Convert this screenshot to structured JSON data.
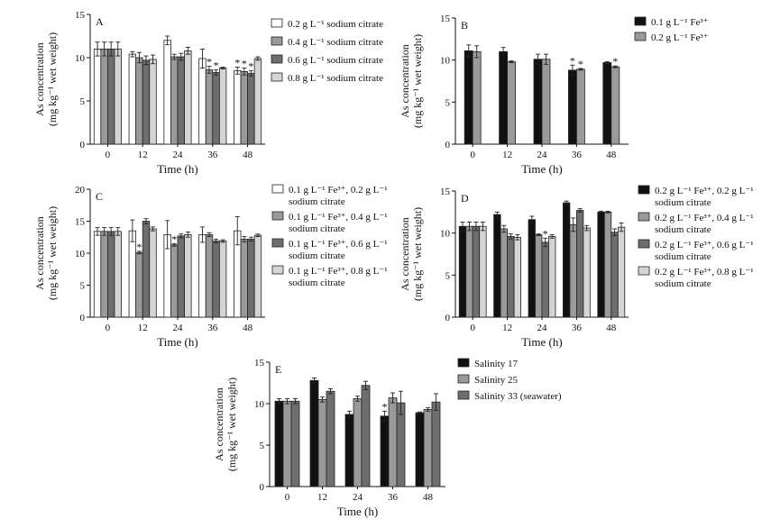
{
  "colors": {
    "white": "#ffffff",
    "light_gray": "#d4d4d4",
    "mid_gray": "#9a9a9a",
    "dark_gray": "#6e6e6e",
    "black": "#111111"
  },
  "chart_data": [
    {
      "type": "bar",
      "panel": "A",
      "xlabel": "Time (h)",
      "ylabel_line1": "As concentration",
      "ylabel_line2": "(mg kg⁻¹ wet weight)",
      "ylim": [
        0,
        15
      ],
      "yticks": [
        0,
        5,
        10,
        15
      ],
      "categories": [
        "0",
        "12",
        "24",
        "36",
        "48"
      ],
      "legend_position": "right",
      "series": [
        {
          "name": "0.2 g L⁻¹ sodium citrate",
          "color": "#ffffff",
          "values": [
            11.0,
            10.4,
            12.0,
            9.9,
            8.5
          ],
          "errors": [
            0.8,
            0.3,
            0.5,
            1.1,
            0.4
          ],
          "stars": [
            false,
            false,
            false,
            false,
            true
          ]
        },
        {
          "name": "0.4 g L⁻¹ sodium citrate",
          "color": "#9a9a9a",
          "values": [
            11.0,
            10.0,
            10.1,
            8.6,
            8.4
          ],
          "errors": [
            0.8,
            0.6,
            0.3,
            0.4,
            0.4
          ],
          "stars": [
            false,
            false,
            false,
            true,
            true
          ]
        },
        {
          "name": "0.6 g L⁻¹ sodium citrate",
          "color": "#6e6e6e",
          "values": [
            11.0,
            9.7,
            10.1,
            8.3,
            8.2
          ],
          "errors": [
            0.8,
            0.5,
            0.4,
            0.3,
            0.3
          ],
          "stars": [
            false,
            false,
            false,
            true,
            true
          ]
        },
        {
          "name": "0.8 g L⁻¹ sodium citrate",
          "color": "#d4d4d4",
          "values": [
            11.0,
            9.8,
            10.8,
            8.8,
            9.9
          ],
          "errors": [
            0.8,
            0.5,
            0.4,
            0.1,
            0.2
          ],
          "stars": [
            false,
            false,
            false,
            false,
            false
          ]
        }
      ]
    },
    {
      "type": "bar",
      "panel": "B",
      "xlabel": "Time (h)",
      "ylabel_line1": "As concentration",
      "ylabel_line2": "(mg kg⁻¹ wet weight)",
      "ylim": [
        0,
        15
      ],
      "yticks": [
        0,
        5,
        10,
        15
      ],
      "categories": [
        "0",
        "12",
        "24",
        "36",
        "48"
      ],
      "legend_position": "right",
      "series": [
        {
          "name": "0.1 g L⁻¹ Fe³⁺",
          "color": "#111111",
          "values": [
            11.1,
            11.0,
            10.1,
            8.8,
            9.7
          ],
          "errors": [
            0.7,
            0.5,
            0.6,
            0.6,
            0.1
          ],
          "stars": [
            false,
            false,
            false,
            true,
            false
          ]
        },
        {
          "name": "0.2 g L⁻¹ Fe³⁺",
          "color": "#9a9a9a",
          "values": [
            11.0,
            9.8,
            10.1,
            8.9,
            9.2
          ],
          "errors": [
            0.7,
            0.1,
            0.6,
            0.1,
            0.1
          ],
          "stars": [
            false,
            false,
            false,
            true,
            true
          ]
        }
      ]
    },
    {
      "type": "bar",
      "panel": "C",
      "xlabel": "Time (h)",
      "ylabel_line1": "As concentration",
      "ylabel_line2": "(mg kg⁻¹ wet weight)",
      "ylim": [
        0,
        20
      ],
      "yticks": [
        0,
        5,
        10,
        15,
        20
      ],
      "categories": [
        "0",
        "12",
        "24",
        "36",
        "48"
      ],
      "legend_position": "right",
      "series": [
        {
          "name_line1": "0.1 g L⁻¹ Fe³⁺, 0.2 g L⁻¹",
          "name_line2": "sodium citrate",
          "color": "#ffffff",
          "values": [
            13.4,
            13.5,
            12.9,
            12.9,
            13.5
          ],
          "errors": [
            0.6,
            1.7,
            2.2,
            1.2,
            2.2
          ],
          "stars": [
            false,
            false,
            false,
            false,
            false
          ]
        },
        {
          "name_line1": "0.1 g L⁻¹ Fe³⁺, 0.4 g L⁻¹",
          "name_line2": "sodium citrate",
          "color": "#9a9a9a",
          "values": [
            13.4,
            10.1,
            11.3,
            12.9,
            12.2
          ],
          "errors": [
            0.6,
            0.2,
            0.2,
            0.3,
            0.4
          ],
          "stars": [
            false,
            true,
            true,
            false,
            false
          ]
        },
        {
          "name_line1": "0.1 g L⁻¹ Fe³⁺, 0.6 g L⁻¹",
          "name_line2": "sodium citrate",
          "color": "#6e6e6e",
          "values": [
            13.4,
            15.0,
            12.7,
            11.9,
            12.2
          ],
          "errors": [
            0.6,
            0.4,
            0.3,
            0.3,
            0.3
          ],
          "stars": [
            false,
            false,
            false,
            false,
            false
          ]
        },
        {
          "name_line1": "0.1 g L⁻¹ Fe³⁺, 0.8 g L⁻¹",
          "name_line2": "sodium citrate",
          "color": "#d4d4d4",
          "values": [
            13.4,
            13.8,
            12.9,
            11.9,
            12.8
          ],
          "errors": [
            0.6,
            0.3,
            0.4,
            0.2,
            0.2
          ],
          "stars": [
            false,
            false,
            false,
            false,
            false
          ]
        }
      ]
    },
    {
      "type": "bar",
      "panel": "D",
      "xlabel": "Time (h)",
      "ylabel_line1": "As concentration",
      "ylabel_line2": "(mg kg⁻¹ wet weight)",
      "ylim": [
        0,
        15
      ],
      "yticks": [
        0,
        5,
        10,
        15
      ],
      "categories": [
        "0",
        "12",
        "24",
        "36",
        "48"
      ],
      "legend_position": "right",
      "series": [
        {
          "name_line1": "0.2 g L⁻¹ Fe³⁺, 0.2 g L⁻¹",
          "name_line2": "sodium citrate",
          "color": "#111111",
          "values": [
            10.8,
            12.2,
            11.6,
            13.6,
            12.5
          ],
          "errors": [
            0.5,
            0.3,
            0.4,
            0.2,
            0.1
          ],
          "stars": [
            false,
            false,
            false,
            false,
            false
          ]
        },
        {
          "name_line1": "0.2 g L⁻¹ Fe³⁺, 0.4 g L⁻¹",
          "name_line2": "sodium citrate",
          "color": "#9a9a9a",
          "values": [
            10.8,
            10.5,
            9.8,
            11.0,
            12.5
          ],
          "errors": [
            0.5,
            0.4,
            0.1,
            0.8,
            0.1
          ],
          "stars": [
            false,
            false,
            false,
            false,
            false
          ]
        },
        {
          "name_line1": "0.2 g L⁻¹ Fe³⁺, 0.6 g L⁻¹",
          "name_line2": "sodium citrate",
          "color": "#6e6e6e",
          "values": [
            10.8,
            9.6,
            8.9,
            12.7,
            10.1
          ],
          "errors": [
            0.5,
            0.3,
            0.5,
            0.2,
            0.4
          ],
          "stars": [
            false,
            false,
            true,
            false,
            false
          ]
        },
        {
          "name_line1": "0.2 g L⁻¹ Fe³⁺, 0.8 g L⁻¹",
          "name_line2": "sodium citrate",
          "color": "#d4d4d4",
          "values": [
            10.8,
            9.5,
            9.6,
            10.6,
            10.7
          ],
          "errors": [
            0.5,
            0.3,
            0.2,
            0.3,
            0.5
          ],
          "stars": [
            false,
            false,
            false,
            false,
            false
          ]
        }
      ]
    },
    {
      "type": "bar",
      "panel": "E",
      "xlabel": "Time (h)",
      "ylabel_line1": "As concentration",
      "ylabel_line2": "(mg kg⁻¹ wet weight)",
      "ylim": [
        0,
        15
      ],
      "yticks": [
        0,
        5,
        10,
        15
      ],
      "categories": [
        "0",
        "12",
        "24",
        "36",
        "48"
      ],
      "legend_position": "right",
      "series": [
        {
          "name": "Salinity 17",
          "color": "#111111",
          "values": [
            10.3,
            12.8,
            8.7,
            8.5,
            8.9
          ],
          "errors": [
            0.3,
            0.3,
            0.4,
            0.6,
            0.1
          ],
          "stars": [
            false,
            false,
            false,
            true,
            false
          ]
        },
        {
          "name": "Salinity 25",
          "color": "#9a9a9a",
          "values": [
            10.3,
            10.5,
            10.6,
            10.7,
            9.3
          ],
          "errors": [
            0.3,
            0.3,
            0.3,
            0.6,
            0.2
          ],
          "stars": [
            false,
            false,
            false,
            false,
            false
          ]
        },
        {
          "name": "Salinity 33 (seawater)",
          "color": "#6e6e6e",
          "values": [
            10.3,
            11.5,
            12.2,
            10.1,
            10.2
          ],
          "errors": [
            0.3,
            0.3,
            0.5,
            1.4,
            1.0
          ],
          "stars": [
            false,
            false,
            false,
            false,
            false
          ]
        }
      ]
    }
  ]
}
